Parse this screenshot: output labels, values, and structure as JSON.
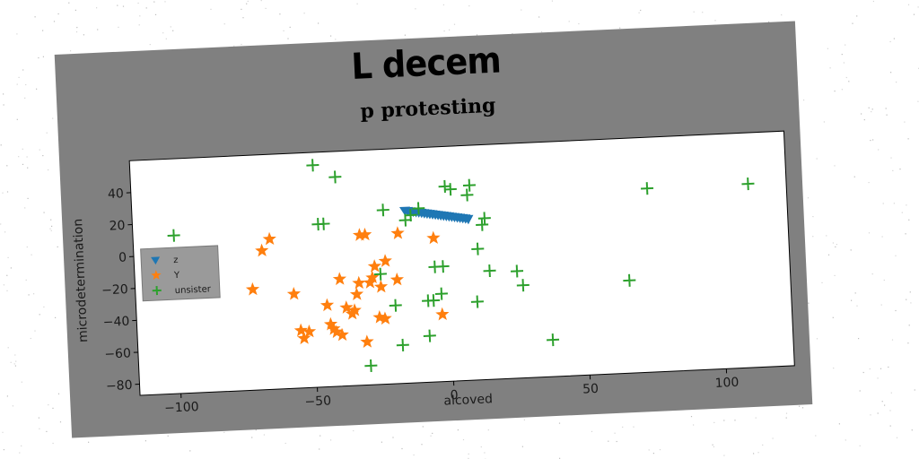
{
  "chart_data": {
    "type": "scatter",
    "suptitle": "L decem",
    "title": "p protesting",
    "xlabel": "alcoved",
    "ylabel": "microdetermination",
    "xlim": [
      -115,
      125
    ],
    "ylim": [
      -87,
      60
    ],
    "xticks": [
      -100,
      -50,
      0,
      50,
      100
    ],
    "yticks": [
      -80,
      -60,
      -40,
      -20,
      0,
      20,
      40
    ],
    "grid": false,
    "legend_position": "center-left",
    "series": [
      {
        "name": "z",
        "marker": "triangle-down",
        "color": "#1f77b4",
        "x": [
          -15,
          -14,
          -13,
          -12,
          -11,
          -10,
          -9,
          -8,
          -7,
          -6,
          -5,
          -4,
          -3,
          -2,
          -1,
          0,
          1,
          2,
          3,
          4,
          5,
          6,
          7,
          8
        ],
        "y": [
          21,
          20.7,
          20.4,
          20.1,
          19.8,
          19.5,
          19.2,
          18.9,
          18.6,
          18.3,
          18,
          17.7,
          17.4,
          17.1,
          16.8,
          16.5,
          16.2,
          15.9,
          15.6,
          15.3,
          15,
          14.7,
          14.4,
          14
        ]
      },
      {
        "name": "Y",
        "marker": "star",
        "color": "#ff7f0e",
        "x": [
          -72,
          -68,
          -65,
          -57,
          -55,
          -54,
          -52,
          -45,
          -44,
          -43,
          -42,
          -40,
          -40,
          -38,
          -36,
          -35,
          -34,
          -33,
          -32,
          -31,
          -30,
          -29,
          -28,
          -27,
          -26,
          -25,
          -24,
          -23,
          -19,
          -18,
          -5,
          -3
        ],
        "y": [
          -24,
          0,
          7,
          -28,
          -51,
          -56,
          -52,
          -36,
          -48,
          -51,
          -53,
          -20,
          -55,
          -38,
          -42,
          -40,
          -30,
          -23,
          7,
          -60,
          7,
          -23,
          -20,
          -13,
          -45,
          -26,
          -46,
          -10,
          -22,
          7,
          3,
          -45
        ]
      },
      {
        "name": "unsister",
        "marker": "plus",
        "color": "#2ca02c",
        "x": [
          -100,
          -48,
          -47,
          -45,
          -40,
          -30,
          -25,
          -23,
          -20,
          -18,
          -15,
          -13,
          -10,
          -8,
          -8,
          -6,
          -5,
          -3,
          -2,
          0,
          2,
          8,
          9,
          10,
          11,
          13,
          14,
          15,
          25,
          27,
          37,
          66,
          74,
          111
        ],
        "y": [
          12,
          52,
          15,
          15,
          44,
          -75,
          -18,
          22,
          -38,
          -63,
          15,
          18,
          22,
          -36,
          -58,
          -36,
          -15,
          -32,
          -15,
          35,
          33,
          29,
          35,
          -38,
          -5,
          10,
          14,
          -19,
          -20,
          -29,
          -64,
          -29,
          28,
          28
        ]
      }
    ]
  }
}
